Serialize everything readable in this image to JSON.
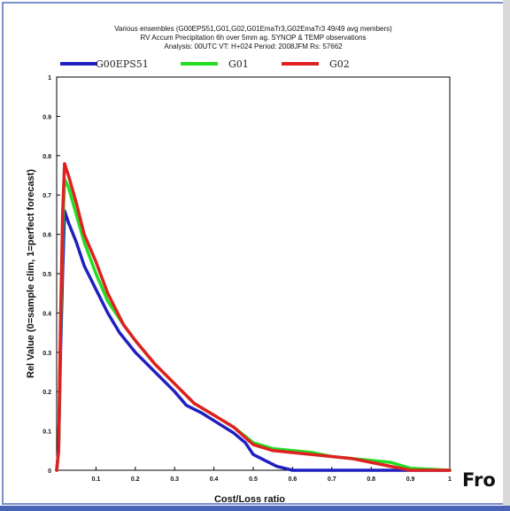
{
  "chart_data": {
    "type": "line",
    "title_lines": [
      "Various ensembles (G00EPS51,G01,G02,G01EmaTr3,G02EmaTr3 49/49 avg members)",
      "RV Accum Precipitation 6h over 5mm ag. SYNOP & TEMP observations",
      "Analysis: 00UTC VT: H+024  Period: 2008JFM  Rs: 57662"
    ],
    "xlabel": "Cost/Loss ratio",
    "ylabel": "Rel Value (0=sample clim, 1=perfect forecast)",
    "xlim": [
      0,
      1
    ],
    "ylim": [
      0,
      1
    ],
    "xticks": [
      "0.1",
      "0.2",
      "0.3",
      "0.4",
      "0.5",
      "0.6",
      "0.7",
      "0.8",
      "0.9",
      "1"
    ],
    "yticks": [
      "0",
      "0.1",
      "0.2",
      "0.3",
      "0.4",
      "0.5",
      "0.6",
      "0.7",
      "0.8",
      "0.9",
      "1"
    ],
    "legend_position": "top",
    "series": [
      {
        "name": "G00EPS51",
        "color": "#1f1fc0",
        "points": [
          [
            0.0,
            0.0
          ],
          [
            0.005,
            0.05
          ],
          [
            0.01,
            0.3
          ],
          [
            0.015,
            0.5
          ],
          [
            0.02,
            0.66
          ],
          [
            0.03,
            0.63
          ],
          [
            0.05,
            0.58
          ],
          [
            0.07,
            0.52
          ],
          [
            0.1,
            0.46
          ],
          [
            0.13,
            0.4
          ],
          [
            0.16,
            0.35
          ],
          [
            0.2,
            0.3
          ],
          [
            0.25,
            0.25
          ],
          [
            0.3,
            0.2
          ],
          [
            0.33,
            0.165
          ],
          [
            0.37,
            0.145
          ],
          [
            0.41,
            0.12
          ],
          [
            0.45,
            0.095
          ],
          [
            0.48,
            0.07
          ],
          [
            0.5,
            0.04
          ],
          [
            0.53,
            0.025
          ],
          [
            0.56,
            0.01
          ],
          [
            0.6,
            0.0
          ],
          [
            1.0,
            0.0
          ]
        ]
      },
      {
        "name": "G01",
        "color": "#22dd22",
        "points": [
          [
            0.0,
            0.0
          ],
          [
            0.005,
            0.05
          ],
          [
            0.01,
            0.35
          ],
          [
            0.015,
            0.6
          ],
          [
            0.02,
            0.74
          ],
          [
            0.03,
            0.72
          ],
          [
            0.05,
            0.65
          ],
          [
            0.07,
            0.58
          ],
          [
            0.1,
            0.5
          ],
          [
            0.13,
            0.43
          ],
          [
            0.17,
            0.37
          ],
          [
            0.2,
            0.33
          ],
          [
            0.25,
            0.27
          ],
          [
            0.3,
            0.22
          ],
          [
            0.35,
            0.17
          ],
          [
            0.4,
            0.14
          ],
          [
            0.45,
            0.11
          ],
          [
            0.5,
            0.07
          ],
          [
            0.55,
            0.055
          ],
          [
            0.6,
            0.05
          ],
          [
            0.65,
            0.045
          ],
          [
            0.7,
            0.035
          ],
          [
            0.75,
            0.03
          ],
          [
            0.8,
            0.025
          ],
          [
            0.85,
            0.02
          ],
          [
            0.9,
            0.005
          ],
          [
            1.0,
            0.0
          ]
        ]
      },
      {
        "name": "G02",
        "color": "#e02020",
        "points": [
          [
            0.0,
            0.0
          ],
          [
            0.005,
            0.05
          ],
          [
            0.01,
            0.38
          ],
          [
            0.015,
            0.65
          ],
          [
            0.02,
            0.78
          ],
          [
            0.03,
            0.75
          ],
          [
            0.05,
            0.68
          ],
          [
            0.07,
            0.6
          ],
          [
            0.1,
            0.53
          ],
          [
            0.13,
            0.45
          ],
          [
            0.17,
            0.37
          ],
          [
            0.2,
            0.33
          ],
          [
            0.25,
            0.27
          ],
          [
            0.3,
            0.22
          ],
          [
            0.35,
            0.17
          ],
          [
            0.4,
            0.14
          ],
          [
            0.45,
            0.11
          ],
          [
            0.5,
            0.065
          ],
          [
            0.55,
            0.05
          ],
          [
            0.6,
            0.045
          ],
          [
            0.65,
            0.04
          ],
          [
            0.7,
            0.035
          ],
          [
            0.75,
            0.03
          ],
          [
            0.8,
            0.02
          ],
          [
            0.85,
            0.01
          ],
          [
            0.9,
            0.0
          ],
          [
            1.0,
            0.0
          ]
        ]
      }
    ]
  },
  "footer_text": "Fro"
}
